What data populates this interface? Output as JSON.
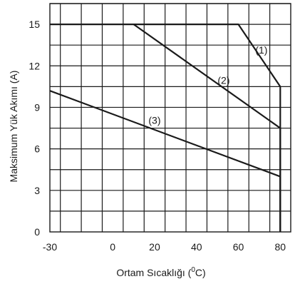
{
  "chart_data": {
    "type": "line",
    "title": "",
    "xlabel_main": "Ortam Sıcaklığı (",
    "xlabel_sup": "0",
    "xlabel_tail": "C)",
    "ylabel": "Maksimum Yük Akımı (A)",
    "xlim": [
      -30,
      85
    ],
    "ylim": [
      0,
      16.5
    ],
    "x_ticks": [
      -30,
      0,
      20,
      40,
      60,
      80
    ],
    "y_ticks": [
      0,
      3,
      6,
      9,
      12,
      15
    ],
    "x_tick_labels": [
      "-30",
      "0",
      "20",
      "40",
      "60",
      "80"
    ],
    "y_tick_labels": [
      "0",
      "3",
      "6",
      "9",
      "12",
      "15"
    ],
    "grid": true,
    "series": [
      {
        "name": "(1)",
        "x": [
          -30,
          60,
          80,
          80
        ],
        "y": [
          15,
          15,
          10.5,
          0
        ],
        "label_at": [
          71,
          12.9
        ]
      },
      {
        "name": "(2)",
        "x": [
          10,
          80,
          80
        ],
        "y": [
          15,
          7.5,
          0
        ],
        "label_at": [
          53,
          10.7
        ]
      },
      {
        "name": "(3)",
        "x": [
          -30,
          80,
          80
        ],
        "y": [
          10.2,
          4,
          0
        ],
        "label_at": [
          20,
          7.8
        ]
      }
    ]
  }
}
